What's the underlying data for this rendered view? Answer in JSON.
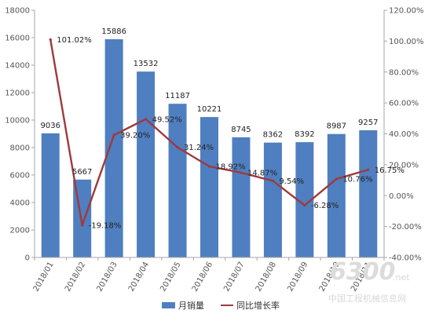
{
  "chart_data": {
    "type": "bar",
    "categories": [
      "2018/01",
      "2018/02",
      "2018/03",
      "2018/04",
      "2018/05",
      "2018/06",
      "2018/07",
      "2018/08",
      "2018/09",
      "2018/10",
      "2018/11"
    ],
    "series": [
      {
        "name": "月销量",
        "type": "bar",
        "axis": "left",
        "color": "#4f7fc0",
        "values": [
          9036,
          5667,
          15886,
          13532,
          11187,
          10221,
          8745,
          8362,
          8392,
          8987,
          9257
        ],
        "labels": [
          "9036",
          "5667",
          "15886",
          "13532",
          "11187",
          "10221",
          "8745",
          "8362",
          "8392",
          "8987",
          "9257"
        ]
      },
      {
        "name": "同比增长率",
        "type": "line",
        "axis": "right",
        "color": "#9e3a3d",
        "values": [
          101.02,
          -19.18,
          39.2,
          49.52,
          31.24,
          18.92,
          14.87,
          9.54,
          -6.28,
          10.76,
          16.75
        ],
        "labels": [
          "101.02%",
          "-19.18%",
          "39.20%",
          "49.52%",
          "31.24%",
          "18.92%",
          "14.87%",
          "9.54%",
          "-6.28%",
          "10.76%",
          "16.75%"
        ]
      }
    ],
    "left_axis": {
      "ylim": [
        0,
        18000
      ],
      "ticks": [
        0,
        2000,
        4000,
        6000,
        8000,
        10000,
        12000,
        14000,
        16000,
        18000
      ],
      "tick_labels": [
        "0",
        "2000",
        "4000",
        "6000",
        "8000",
        "10000",
        "12000",
        "14000",
        "16000",
        "18000"
      ]
    },
    "right_axis": {
      "ylim": [
        -40,
        120
      ],
      "ticks": [
        -40,
        -20,
        0,
        20,
        40,
        60,
        80,
        100,
        120
      ],
      "tick_labels": [
        "-40.00%",
        "-20.00%",
        "0.00%",
        "20.00%",
        "40.00%",
        "60.00%",
        "80.00%",
        "100.00%",
        "120.00%"
      ]
    },
    "grid": false,
    "legend_position": "bottom"
  },
  "watermark": {
    "logo": "6300",
    "net": ".net",
    "text": "中国工程机械信息网"
  }
}
